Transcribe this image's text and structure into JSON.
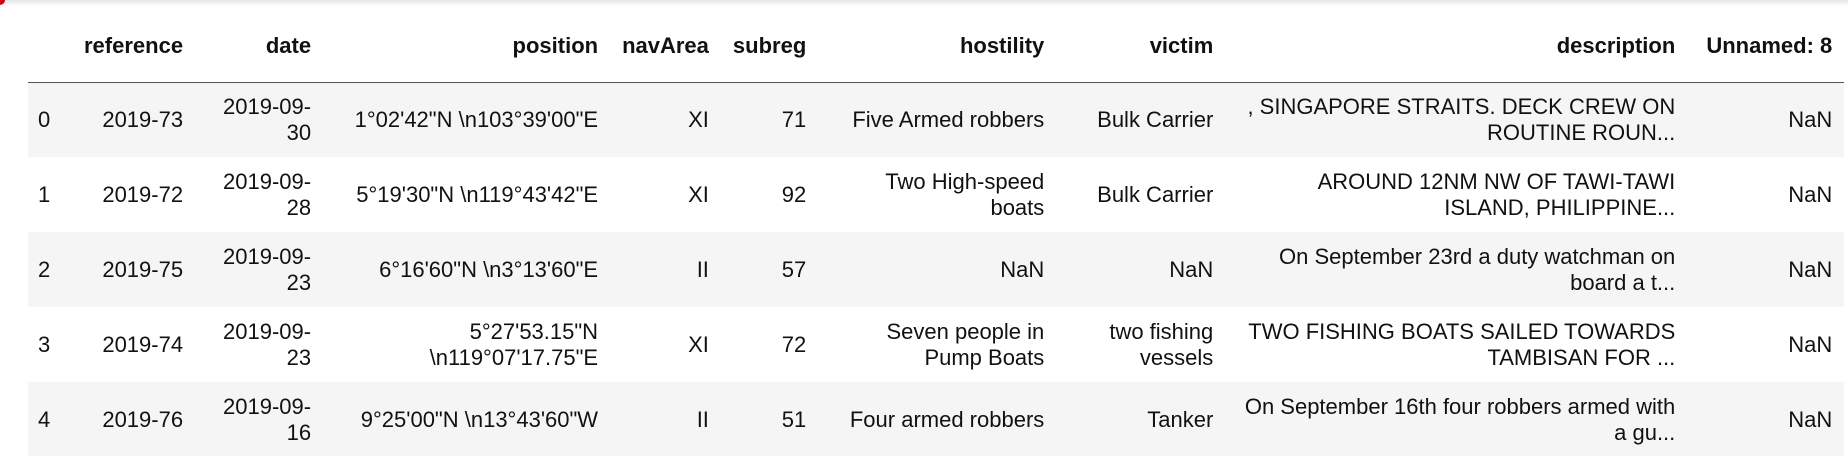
{
  "table": {
    "columns": [
      "reference",
      "date",
      "position",
      "navArea",
      "subreg",
      "hostility",
      "victim",
      "description",
      "Unnamed: 8"
    ],
    "rows": [
      {
        "index": "0",
        "reference": "2019-73",
        "date": "2019-09-30",
        "position": "1°02'42\"N \\n103°39'00\"E",
        "navArea": "XI",
        "subreg": "71",
        "hostility": "Five Armed robbers",
        "victim": "Bulk Carrier",
        "description": ", SINGAPORE STRAITS. DECK CREW ON ROUTINE ROUN...",
        "unnamed_8": "NaN"
      },
      {
        "index": "1",
        "reference": "2019-72",
        "date": "2019-09-28",
        "position": "5°19'30\"N \\n119°43'42\"E",
        "navArea": "XI",
        "subreg": "92",
        "hostility": "Two High-speed boats",
        "victim": "Bulk Carrier",
        "description": "AROUND 12NM NW OF TAWI-TAWI ISLAND, PHILIPPINE...",
        "unnamed_8": "NaN"
      },
      {
        "index": "2",
        "reference": "2019-75",
        "date": "2019-09-23",
        "position": "6°16'60\"N \\n3°13'60\"E",
        "navArea": "II",
        "subreg": "57",
        "hostility": "NaN",
        "victim": "NaN",
        "description": "On September 23rd a duty watchman on board a t...",
        "unnamed_8": "NaN"
      },
      {
        "index": "3",
        "reference": "2019-74",
        "date": "2019-09-23",
        "position": "5°27'53.15\"N \\n119°07'17.75\"E",
        "navArea": "XI",
        "subreg": "72",
        "hostility": "Seven people in Pump Boats",
        "victim": "two fishing vessels",
        "description": "TWO FISHING BOATS SAILED TOWARDS TAMBISAN FOR ...",
        "unnamed_8": "NaN"
      },
      {
        "index": "4",
        "reference": "2019-76",
        "date": "2019-09-16",
        "position": "9°25'00\"N \\n13°43'60\"W",
        "navArea": "II",
        "subreg": "51",
        "hostility": "Four armed robbers",
        "victim": "Tanker",
        "description": "On September 16th four robbers armed with a gu...",
        "unnamed_8": "NaN"
      }
    ]
  }
}
